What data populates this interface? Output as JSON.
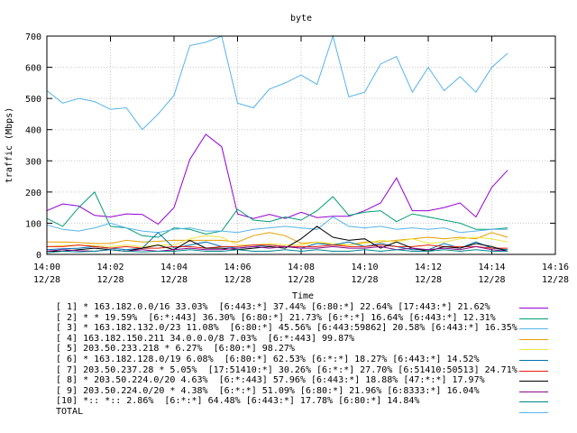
{
  "chart_data": {
    "type": "line",
    "title": "byte",
    "xlabel": "Time",
    "ylabel": "traffic (Mbps)",
    "ylim": [
      0,
      700
    ],
    "yticks": [
      0,
      100,
      200,
      300,
      400,
      500,
      600,
      700
    ],
    "xlim": [
      "14:00",
      "14:16"
    ],
    "xticks": [
      {
        "time": "14:00",
        "date": "12/28"
      },
      {
        "time": "14:02",
        "date": "12/28"
      },
      {
        "time": "14:04",
        "date": "12/28"
      },
      {
        "time": "14:06",
        "date": "12/28"
      },
      {
        "time": "14:08",
        "date": "12/28"
      },
      {
        "time": "14:10",
        "date": "12/28"
      },
      {
        "time": "14:12",
        "date": "12/28"
      },
      {
        "time": "14:14",
        "date": "12/28"
      },
      {
        "time": "14:16",
        "date": "12/28"
      }
    ],
    "x": [
      "14:00:00",
      "14:00:30",
      "14:01:00",
      "14:01:30",
      "14:02:00",
      "14:02:30",
      "14:03:00",
      "14:03:30",
      "14:04:00",
      "14:04:30",
      "14:05:00",
      "14:05:30",
      "14:06:00",
      "14:06:30",
      "14:07:00",
      "14:07:30",
      "14:08:00",
      "14:08:30",
      "14:09:00",
      "14:09:30",
      "14:10:00",
      "14:10:30",
      "14:11:00",
      "14:11:30",
      "14:12:00",
      "14:12:30",
      "14:13:00",
      "14:13:30",
      "14:14:00",
      "14:14:30",
      "14:15:00"
    ],
    "series": [
      {
        "name": "[ 1] * 163.182.0.0/16 33.03%  [6:443:*] 37.44% [6:80:*] 22.64% [17:443:*] 21.62%",
        "color": "#9400d3",
        "values": [
          140,
          162,
          155,
          125,
          120,
          130,
          128,
          97,
          150,
          305,
          385,
          345,
          130,
          115,
          128,
          115,
          135,
          118,
          122,
          122,
          140,
          165,
          245,
          140,
          140,
          150,
          165,
          120,
          215,
          270,
          null
        ]
      },
      {
        "name": "[ 2] * * 19.59%  [6:*:443] 36.30% [6:80:*] 21.73% [6:*:*] 16.64% [6:443:*] 12.31%",
        "color": "#009e73",
        "values": [
          115,
          90,
          150,
          200,
          90,
          85,
          60,
          55,
          85,
          80,
          65,
          75,
          145,
          110,
          105,
          120,
          110,
          140,
          185,
          125,
          135,
          140,
          105,
          130,
          120,
          110,
          100,
          80,
          80,
          85,
          null
        ]
      },
      {
        "name": "[ 3] * 163.182.132.0/23 11.08%  [6:80:*] 45.56% [6:443:59862] 20.58% [6:443:*] 16.35%",
        "color": "#56b4e9",
        "values": [
          95,
          80,
          75,
          85,
          100,
          85,
          75,
          70,
          80,
          85,
          75,
          75,
          70,
          80,
          85,
          90,
          85,
          80,
          120,
          90,
          85,
          90,
          80,
          85,
          80,
          85,
          70,
          75,
          80,
          80,
          null
        ]
      },
      {
        "name": "[ 4] 163.182.150.211 34.0.0.0/8 7.03%  [6:*:443] 99.87%",
        "color": "#e69f00",
        "values": [
          40,
          40,
          38,
          35,
          35,
          45,
          40,
          42,
          45,
          45,
          45,
          45,
          40,
          60,
          70,
          60,
          35,
          40,
          30,
          30,
          40,
          40,
          45,
          50,
          55,
          50,
          55,
          50,
          70,
          55,
          null
        ]
      },
      {
        "name": "[ 5] 203.50.233.218 * 6.27%  [6:80:*] 98.27%",
        "color": "#f0e442",
        "values": [
          25,
          28,
          30,
          28,
          25,
          30,
          25,
          30,
          30,
          50,
          60,
          55,
          30,
          30,
          35,
          30,
          30,
          40,
          35,
          30,
          35,
          45,
          40,
          50,
          35,
          40,
          50,
          55,
          50,
          40,
          null
        ]
      },
      {
        "name": "[ 6] * 163.182.128.0/19 6.08%  [6:80:*] 62.53% [6:*:*] 18.27% [6:443:*] 14.52%",
        "color": "#0072b2",
        "values": [
          15,
          18,
          20,
          25,
          20,
          15,
          20,
          70,
          20,
          30,
          40,
          25,
          20,
          25,
          30,
          25,
          20,
          35,
          30,
          40,
          25,
          35,
          25,
          15,
          15,
          35,
          20,
          40,
          20,
          15,
          null
        ]
      },
      {
        "name": "[ 7] 203.50.237.28 * 5.05%  [17:51410:*] 30.26% [6:*:*] 27.70% [6:51410:50513] 24.71%",
        "color": "#e51e10",
        "values": [
          25,
          25,
          30,
          25,
          20,
          25,
          20,
          20,
          25,
          25,
          20,
          25,
          25,
          30,
          30,
          25,
          25,
          25,
          30,
          25,
          25,
          30,
          25,
          25,
          30,
          25,
          25,
          25,
          20,
          20,
          null
        ]
      },
      {
        "name": "[ 8] * 203.50.224.0/20 4.63%  [6:*:443] 57.96% [6:443:*] 18.88% [47:*:*] 17.97%",
        "color": "#000000",
        "values": [
          10,
          10,
          15,
          20,
          15,
          10,
          20,
          30,
          15,
          45,
          20,
          20,
          15,
          20,
          25,
          20,
          50,
          90,
          55,
          45,
          50,
          20,
          40,
          20,
          10,
          25,
          20,
          35,
          25,
          10,
          null
        ]
      },
      {
        "name": "[ 9] 203.50.224.0/20 * 4.38%  [6:*:*] 51.09% [6:80:*] 21.96% [6:8333:*] 16.04%",
        "color": "#8b0a8b",
        "values": [
          10,
          15,
          12,
          10,
          15,
          10,
          15,
          10,
          15,
          20,
          15,
          15,
          20,
          25,
          20,
          25,
          20,
          20,
          25,
          20,
          20,
          25,
          15,
          20,
          15,
          20,
          15,
          25,
          15,
          10,
          null
        ]
      },
      {
        "name": "[10] *:: *:: 2.86%  [6:*:*] 64.48% [6:443:*] 17.78% [6:80:*] 14.84%",
        "color": "#00868b",
        "values": [
          5,
          10,
          8,
          10,
          15,
          10,
          8,
          10,
          10,
          15,
          10,
          10,
          15,
          10,
          10,
          15,
          10,
          15,
          10,
          10,
          15,
          10,
          15,
          10,
          10,
          15,
          10,
          15,
          10,
          10,
          null
        ]
      },
      {
        "name": "TOTAL",
        "color": "#56b4e9",
        "values": [
          525,
          485,
          500,
          490,
          465,
          470,
          400,
          450,
          510,
          670,
          680,
          700,
          485,
          470,
          530,
          550,
          575,
          545,
          700,
          505,
          520,
          610,
          635,
          520,
          600,
          525,
          570,
          520,
          600,
          645,
          null
        ]
      }
    ]
  }
}
